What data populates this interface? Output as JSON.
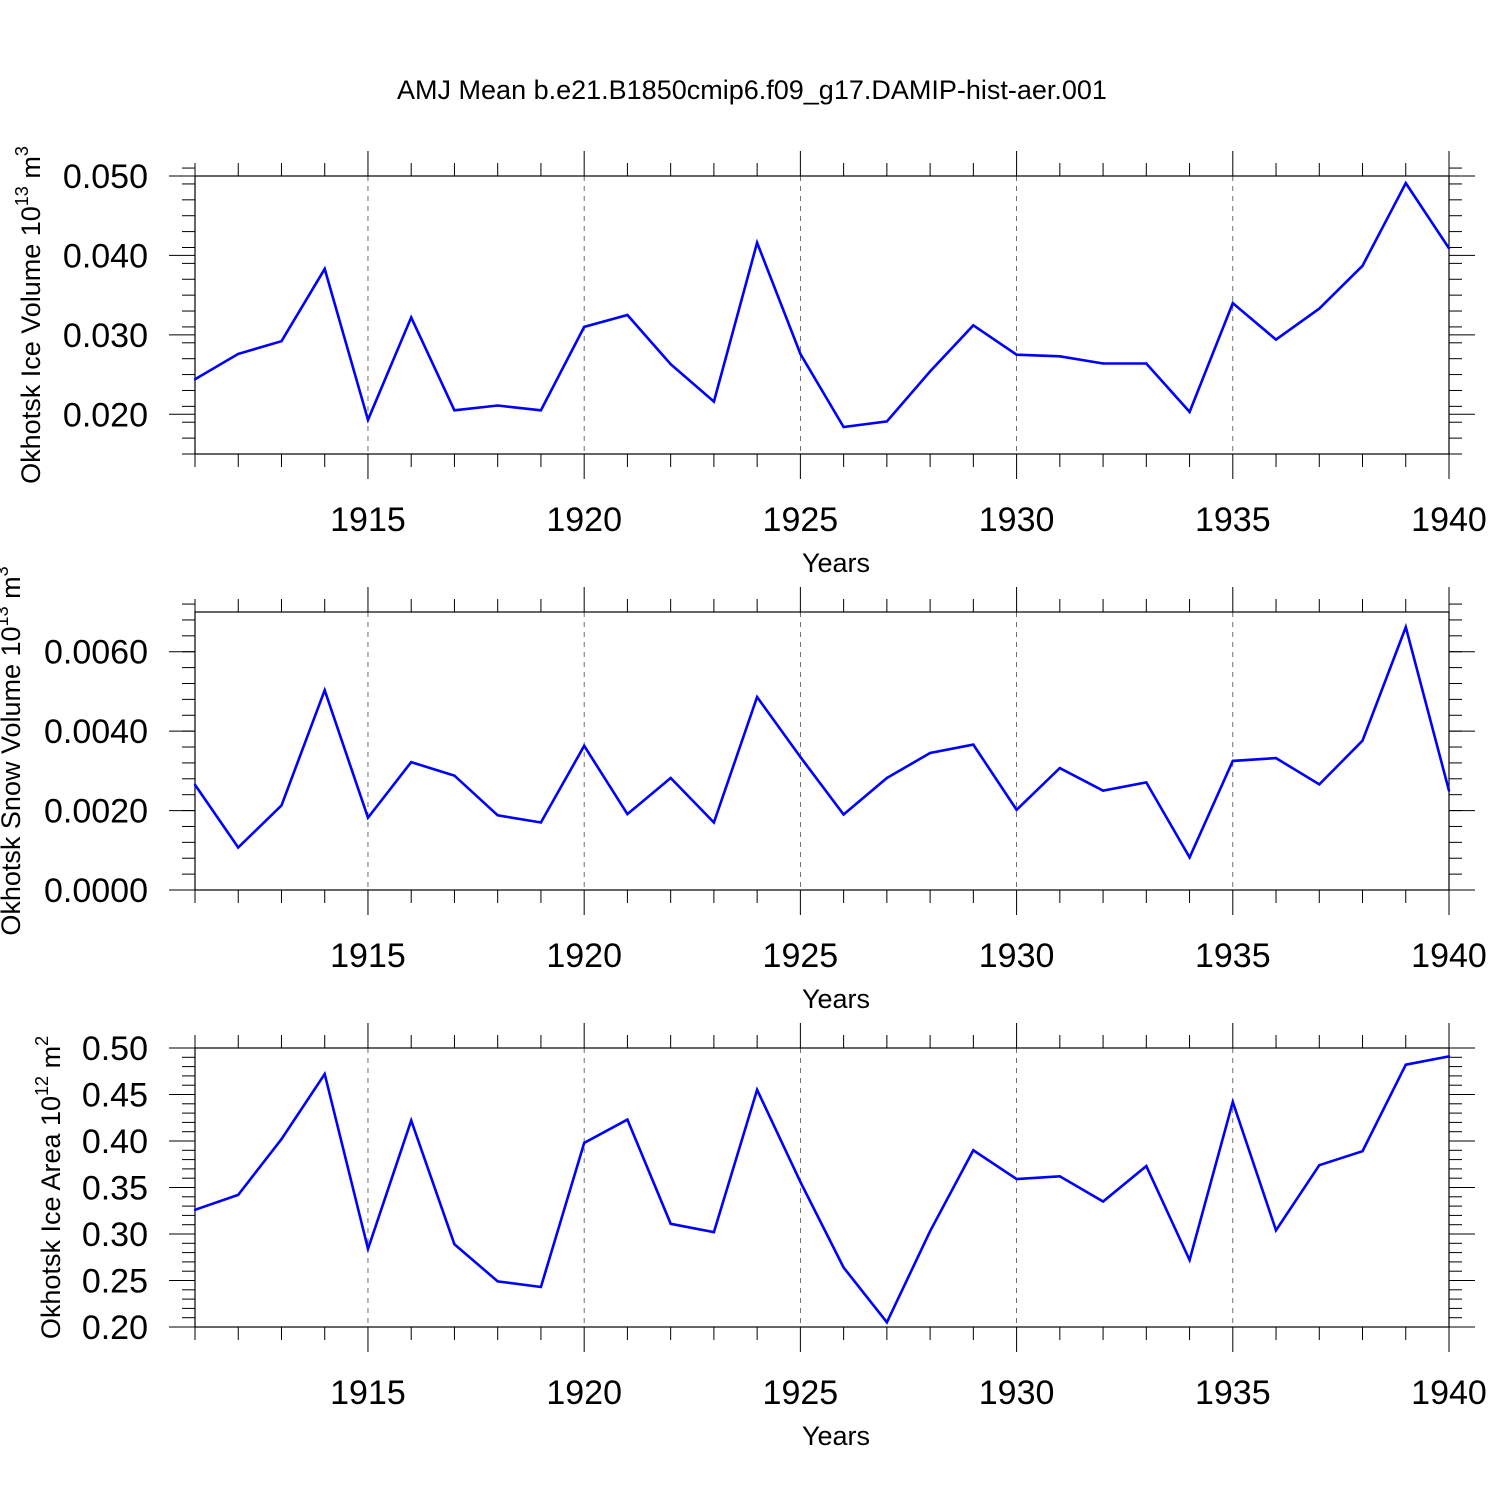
{
  "figure": {
    "title": "AMJ Mean b.e21.B1850cmip6.f09_g17.DAMIP-hist-aer.001"
  },
  "chart_data": [
    {
      "type": "line",
      "title": "AMJ Mean b.e21.B1850cmip6.f09_g17.DAMIP-hist-aer.001",
      "ylabel_main": "Okhotsk Ice Volume 10",
      "ylabel_exp": "13",
      "ylabel_unit": " m",
      "ylabel_unit_exp": "3",
      "xlabel": "Years",
      "xlim": [
        1911,
        1940
      ],
      "ylim": [
        0.015,
        0.05
      ],
      "xticks": [
        1915,
        1920,
        1925,
        1930,
        1935,
        1940
      ],
      "xtick_labels": [
        "1915",
        "1920",
        "1925",
        "1930",
        "1935",
        "1940"
      ],
      "yticks": [
        0.02,
        0.03,
        0.04,
        0.05
      ],
      "ytick_labels": [
        "0.020",
        "0.030",
        "0.040",
        "0.050"
      ],
      "yminor_step": 0.002,
      "grid": "vertical dashed at major x ticks",
      "color": "#0000ff",
      "x": [
        1911,
        1912,
        1913,
        1914,
        1915,
        1916,
        1917,
        1918,
        1919,
        1920,
        1921,
        1922,
        1923,
        1924,
        1925,
        1926,
        1927,
        1928,
        1929,
        1930,
        1931,
        1932,
        1933,
        1934,
        1935,
        1936,
        1937,
        1938,
        1939,
        1940
      ],
      "values": [
        0.0244,
        0.0276,
        0.0292,
        0.0383,
        0.0193,
        0.0322,
        0.0205,
        0.0211,
        0.0205,
        0.031,
        0.0325,
        0.0263,
        0.0216,
        0.0416,
        0.0276,
        0.0184,
        0.0191,
        0.0254,
        0.0312,
        0.0275,
        0.0273,
        0.0264,
        0.0264,
        0.0203,
        0.034,
        0.0294,
        0.0333,
        0.0387,
        0.0491,
        0.0409
      ]
    },
    {
      "type": "line",
      "ylabel_main": "Okhotsk Snow Volume 10",
      "ylabel_exp": "13",
      "ylabel_unit": " m",
      "ylabel_unit_exp": "3",
      "xlabel": "Years",
      "xlim": [
        1911,
        1940
      ],
      "ylim": [
        0.0,
        0.007
      ],
      "xticks": [
        1915,
        1920,
        1925,
        1930,
        1935,
        1940
      ],
      "xtick_labels": [
        "1915",
        "1920",
        "1925",
        "1930",
        "1935",
        "1940"
      ],
      "yticks": [
        0.0,
        0.002,
        0.004,
        0.006
      ],
      "ytick_labels": [
        "0.0000",
        "0.0020",
        "0.0040",
        "0.0060"
      ],
      "yminor_step": 0.0004,
      "grid": "vertical dashed at major x ticks",
      "color": "#0000ff",
      "x": [
        1911,
        1912,
        1913,
        1914,
        1915,
        1916,
        1917,
        1918,
        1919,
        1920,
        1921,
        1922,
        1923,
        1924,
        1925,
        1926,
        1927,
        1928,
        1929,
        1930,
        1931,
        1932,
        1933,
        1934,
        1935,
        1936,
        1937,
        1938,
        1939,
        1940
      ],
      "values": [
        0.00265,
        0.00107,
        0.00213,
        0.00503,
        0.00182,
        0.00322,
        0.00288,
        0.00188,
        0.0017,
        0.00363,
        0.00191,
        0.00282,
        0.0017,
        0.00486,
        0.00335,
        0.0019,
        0.00282,
        0.00345,
        0.00366,
        0.00202,
        0.00307,
        0.0025,
        0.00271,
        0.00082,
        0.00325,
        0.00332,
        0.00266,
        0.00376,
        0.00662,
        0.0025
      ]
    },
    {
      "type": "line",
      "ylabel_main": "Okhotsk Ice Area 10",
      "ylabel_exp": "12",
      "ylabel_unit": " m",
      "ylabel_unit_exp": "2",
      "xlabel": "Years",
      "xlim": [
        1911,
        1940
      ],
      "ylim": [
        0.2,
        0.5
      ],
      "xticks": [
        1915,
        1920,
        1925,
        1930,
        1935,
        1940
      ],
      "xtick_labels": [
        "1915",
        "1920",
        "1925",
        "1930",
        "1935",
        "1940"
      ],
      "yticks": [
        0.2,
        0.25,
        0.3,
        0.35,
        0.4,
        0.45,
        0.5
      ],
      "ytick_labels": [
        "0.20",
        "0.25",
        "0.30",
        "0.35",
        "0.40",
        "0.45",
        "0.50"
      ],
      "yminor_step": 0.01,
      "grid": "vertical dashed at major x ticks",
      "color": "#0000ff",
      "x": [
        1911,
        1912,
        1913,
        1914,
        1915,
        1916,
        1917,
        1918,
        1919,
        1920,
        1921,
        1922,
        1923,
        1924,
        1925,
        1926,
        1927,
        1928,
        1929,
        1930,
        1931,
        1932,
        1933,
        1934,
        1935,
        1936,
        1937,
        1938,
        1939,
        1940
      ],
      "values": [
        0.326,
        0.342,
        0.402,
        0.472,
        0.284,
        0.422,
        0.289,
        0.249,
        0.243,
        0.398,
        0.423,
        0.311,
        0.302,
        0.455,
        0.356,
        0.264,
        0.205,
        0.303,
        0.39,
        0.359,
        0.362,
        0.335,
        0.373,
        0.272,
        0.442,
        0.304,
        0.374,
        0.389,
        0.482,
        0.491
      ]
    }
  ]
}
